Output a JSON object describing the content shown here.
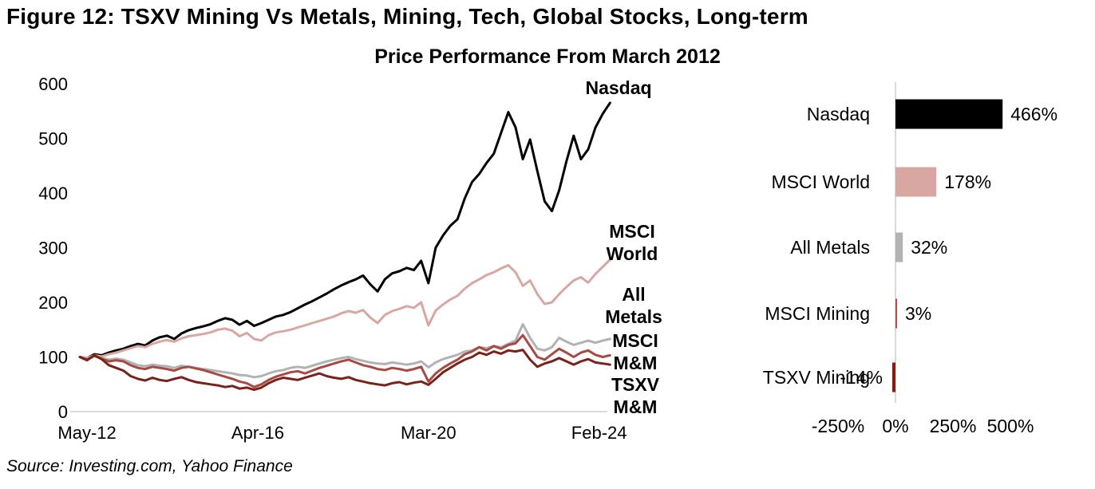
{
  "figure": {
    "title": "Figure 12: TSXV Mining Vs Metals, Mining, Tech, Global Stocks, Long-term",
    "subtitle": "Price Performance From March 2012",
    "source": "Source: Investing.com, Yahoo Finance"
  },
  "colors": {
    "nasdaq": "#000000",
    "msci_world": "#d9a7a2",
    "all_metals": "#b3b2b2",
    "msci_mm": "#a84a44",
    "tsxv_mm": "#7a211a",
    "tsxv_bar": "#8b1a0e",
    "axis_line": "#d9d9d9"
  },
  "chart_data": [
    {
      "type": "line",
      "title": "Price Performance From March 2012",
      "x_axis": {
        "unit": "months since Mar-2012",
        "step_months_between_points": 2,
        "ticks": [
          {
            "label": "May-12",
            "t": 2
          },
          {
            "label": "Apr-16",
            "t": 49
          },
          {
            "label": "Mar-20",
            "t": 96
          },
          {
            "label": "Feb-24",
            "t": 143
          }
        ]
      },
      "y_axis": {
        "ticks": [
          600,
          500,
          400,
          300,
          200,
          100,
          0
        ],
        "lim": [
          0,
          620
        ]
      },
      "grid": false,
      "base_value": 100,
      "series": [
        {
          "name": "Nasdaq",
          "color": "#000000",
          "label_lines": [
            "Nasdaq"
          ],
          "label_anchor": {
            "x": 745,
            "y": 28
          },
          "values": [
            100,
            98,
            105,
            103,
            108,
            112,
            115,
            120,
            124,
            121,
            130,
            136,
            139,
            133,
            143,
            149,
            153,
            156,
            160,
            166,
            171,
            168,
            159,
            166,
            157,
            162,
            168,
            174,
            177,
            182,
            189,
            196,
            202,
            209,
            216,
            224,
            231,
            237,
            242,
            249,
            233,
            220,
            242,
            253,
            257,
            263,
            259,
            276,
            235,
            300,
            322,
            340,
            352,
            390,
            420,
            435,
            455,
            472,
            510,
            548,
            520,
            462,
            498,
            440,
            385,
            367,
            405,
            458,
            505,
            462,
            480,
            520,
            545,
            565
          ]
        },
        {
          "name": "MSCI World",
          "color": "#d9a7a2",
          "label_lines": [
            "MSCI",
            "World"
          ],
          "label_anchor": {
            "x": 762,
            "y": 208
          },
          "values": [
            100,
            98,
            103,
            101,
            105,
            108,
            112,
            116,
            120,
            118,
            124,
            128,
            131,
            128,
            134,
            138,
            140,
            142,
            145,
            150,
            152,
            148,
            138,
            144,
            133,
            130,
            140,
            145,
            147,
            150,
            154,
            158,
            162,
            166,
            170,
            174,
            180,
            184,
            181,
            186,
            172,
            162,
            177,
            184,
            188,
            193,
            190,
            200,
            158,
            185,
            196,
            205,
            212,
            225,
            235,
            242,
            250,
            255,
            262,
            268,
            255,
            230,
            240,
            215,
            197,
            200,
            215,
            228,
            240,
            246,
            236,
            252,
            265,
            278
          ]
        },
        {
          "name": "All Metals",
          "color": "#b3b2b2",
          "label_lines": [
            "All",
            "Metals"
          ],
          "label_anchor": {
            "x": 764,
            "y": 287
          },
          "values": [
            100,
            96,
            102,
            98,
            95,
            97,
            95,
            90,
            85,
            83,
            86,
            84,
            83,
            80,
            84,
            82,
            80,
            78,
            76,
            74,
            72,
            70,
            67,
            66,
            63,
            65,
            70,
            74,
            76,
            80,
            82,
            80,
            84,
            88,
            92,
            95,
            98,
            100,
            96,
            93,
            90,
            88,
            87,
            90,
            88,
            86,
            88,
            92,
            81,
            90,
            96,
            100,
            104,
            110,
            112,
            118,
            116,
            120,
            118,
            124,
            130,
            160,
            135,
            115,
            112,
            118,
            135,
            128,
            122,
            126,
            130,
            126,
            130,
            133
          ]
        },
        {
          "name": "MSCI M&M",
          "color": "#a84a44",
          "label_lines": [
            "MSCI",
            "M&M"
          ],
          "label_anchor": {
            "x": 766,
            "y": 345
          },
          "values": [
            100,
            95,
            102,
            97,
            92,
            94,
            92,
            85,
            80,
            78,
            82,
            80,
            78,
            75,
            80,
            82,
            79,
            76,
            72,
            68,
            64,
            60,
            55,
            52,
            45,
            50,
            58,
            64,
            68,
            72,
            74,
            70,
            75,
            80,
            84,
            88,
            92,
            95,
            90,
            85,
            82,
            78,
            76,
            80,
            78,
            75,
            78,
            82,
            55,
            70,
            80,
            88,
            95,
            105,
            110,
            118,
            112,
            120,
            115,
            122,
            125,
            140,
            120,
            100,
            95,
            105,
            115,
            108,
            100,
            108,
            112,
            104,
            100,
            103
          ]
        },
        {
          "name": "TSXV M&M",
          "color": "#7a211a",
          "label_lines": [
            "TSXV",
            "M&M"
          ],
          "label_anchor": {
            "x": 766,
            "y": 400
          },
          "values": [
            100,
            94,
            103,
            96,
            85,
            80,
            75,
            65,
            60,
            57,
            62,
            58,
            56,
            60,
            63,
            58,
            54,
            52,
            50,
            48,
            45,
            47,
            42,
            44,
            40,
            44,
            52,
            58,
            62,
            60,
            58,
            62,
            66,
            70,
            65,
            62,
            60,
            63,
            58,
            55,
            52,
            50,
            48,
            52,
            54,
            50,
            53,
            55,
            49,
            60,
            72,
            80,
            88,
            95,
            100,
            108,
            104,
            110,
            106,
            112,
            110,
            113,
            95,
            82,
            88,
            92,
            98,
            92,
            86,
            92,
            96,
            90,
            88,
            86
          ]
        }
      ]
    },
    {
      "type": "bar",
      "orientation": "horizontal",
      "categories": [
        "Nasdaq",
        "MSCI World",
        "All Metals",
        "MSCI Mining",
        "TSXV Mining"
      ],
      "values": [
        466,
        178,
        32,
        3,
        -14
      ],
      "value_labels": [
        "466%",
        "178%",
        "32%",
        "3%",
        "-14%"
      ],
      "bar_colors": [
        "#000000",
        "#d9a7a2",
        "#b3b2b2",
        "#b05049",
        "#8b1a0e"
      ],
      "x_ticks": [
        {
          "label": "-250%",
          "v": -250
        },
        {
          "label": "0%",
          "v": 0
        },
        {
          "label": "250%",
          "v": 250
        },
        {
          "label": "500%",
          "v": 500
        }
      ],
      "xlim": [
        -330,
        560
      ],
      "axis_color": "#d9d9d9",
      "legend": "none"
    }
  ]
}
